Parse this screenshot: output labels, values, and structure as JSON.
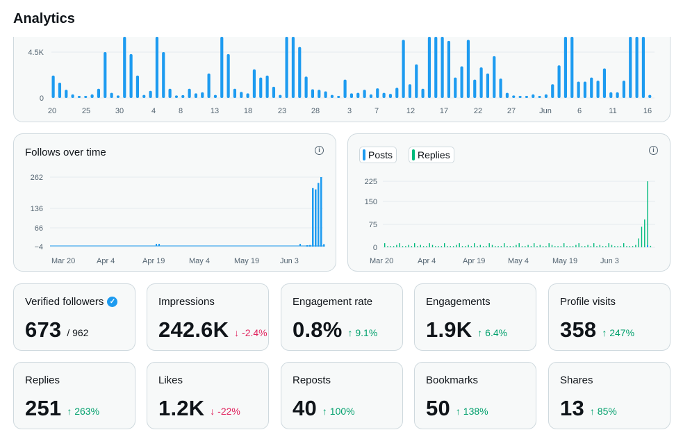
{
  "header": {
    "title": "Analytics"
  },
  "impressions_chart": {
    "y_ticks": [
      "4.5K",
      "0"
    ],
    "x_labels": [
      "20",
      "25",
      "30",
      "4",
      "8",
      "13",
      "18",
      "23",
      "28",
      "3",
      "7",
      "12",
      "17",
      "22",
      "27",
      "Jun",
      "6",
      "11",
      "16"
    ],
    "chart_data": {
      "type": "bar",
      "ylim": [
        0,
        6000
      ],
      "yticks": [
        0,
        4500
      ],
      "values": [
        2200,
        1500,
        800,
        350,
        150,
        200,
        350,
        900,
        4500,
        500,
        250,
        6000,
        4300,
        2200,
        300,
        700,
        6000,
        4500,
        900,
        250,
        280,
        900,
        450,
        550,
        2400,
        300,
        6000,
        4300,
        900,
        600,
        450,
        2800,
        2000,
        2200,
        1100,
        300,
        6000,
        6000,
        5000,
        2100,
        850,
        800,
        650,
        300,
        100,
        1800,
        450,
        500,
        800,
        350,
        950,
        500,
        400,
        1000,
        5700,
        1350,
        3300,
        900,
        6000,
        6000,
        6000,
        5600,
        2000,
        3100,
        5700,
        1800,
        3000,
        2400,
        4100,
        1900,
        500,
        250,
        200,
        150,
        350,
        200,
        350,
        1350,
        3200,
        6000,
        6000,
        1600,
        1600,
        2000,
        1700,
        2900,
        550,
        550,
        1700,
        6000,
        6000,
        6000,
        300
      ]
    }
  },
  "follows_chart": {
    "title": "Follows over time",
    "y_ticks": [
      "262",
      "136",
      "66",
      "−4"
    ],
    "x_labels": [
      "Mar 20",
      "Apr 4",
      "Apr 19",
      "May 4",
      "May 19",
      "Jun 3"
    ],
    "chart_data": {
      "type": "bar",
      "ylim": [
        -4,
        262
      ],
      "values_last_days": [
        -4,
        2,
        220,
        215,
        240,
        262,
        5
      ],
      "note_values": "near -4 for most days, spike to 262 at the end"
    }
  },
  "posts_chart": {
    "legend": {
      "posts": "Posts",
      "replies": "Replies"
    },
    "y_ticks": [
      "225",
      "150",
      "75",
      "0"
    ],
    "x_labels": [
      "Mar 20",
      "Apr 4",
      "Apr 19",
      "May 4",
      "May 19",
      "Jun 3"
    ],
    "chart_data": {
      "type": "bar",
      "ylim": [
        0,
        225
      ],
      "series": [
        {
          "name": "Replies",
          "color": "#00ba7c"
        },
        {
          "name": "Posts",
          "color": "#1d9bf0"
        }
      ]
    }
  },
  "metrics": [
    {
      "label": "Verified followers",
      "value": "673",
      "sub": "/ 962",
      "sub_type": "neutral",
      "verified": true
    },
    {
      "label": "Impressions",
      "value": "242.6K",
      "sub": "↓ -2.4%",
      "sub_type": "down"
    },
    {
      "label": "Engagement rate",
      "value": "0.8%",
      "sub": "↑ 9.1%",
      "sub_type": "up"
    },
    {
      "label": "Engagements",
      "value": "1.9K",
      "sub": "↑ 6.4%",
      "sub_type": "up"
    },
    {
      "label": "Profile visits",
      "value": "358",
      "sub": "↑ 247%",
      "sub_type": "up"
    },
    {
      "label": "Replies",
      "value": "251",
      "sub": "↑ 263%",
      "sub_type": "up"
    },
    {
      "label": "Likes",
      "value": "1.2K",
      "sub": "↓ -22%",
      "sub_type": "down"
    },
    {
      "label": "Reposts",
      "value": "40",
      "sub": "↑ 100%",
      "sub_type": "up"
    },
    {
      "label": "Bookmarks",
      "value": "50",
      "sub": "↑ 138%",
      "sub_type": "up"
    },
    {
      "label": "Shares",
      "value": "13",
      "sub": "↑ 85%",
      "sub_type": "up"
    }
  ],
  "colors": {
    "blue": "#1d9bf0",
    "green": "#00ba7c",
    "up": "#00a06c",
    "down": "#e0245e"
  }
}
